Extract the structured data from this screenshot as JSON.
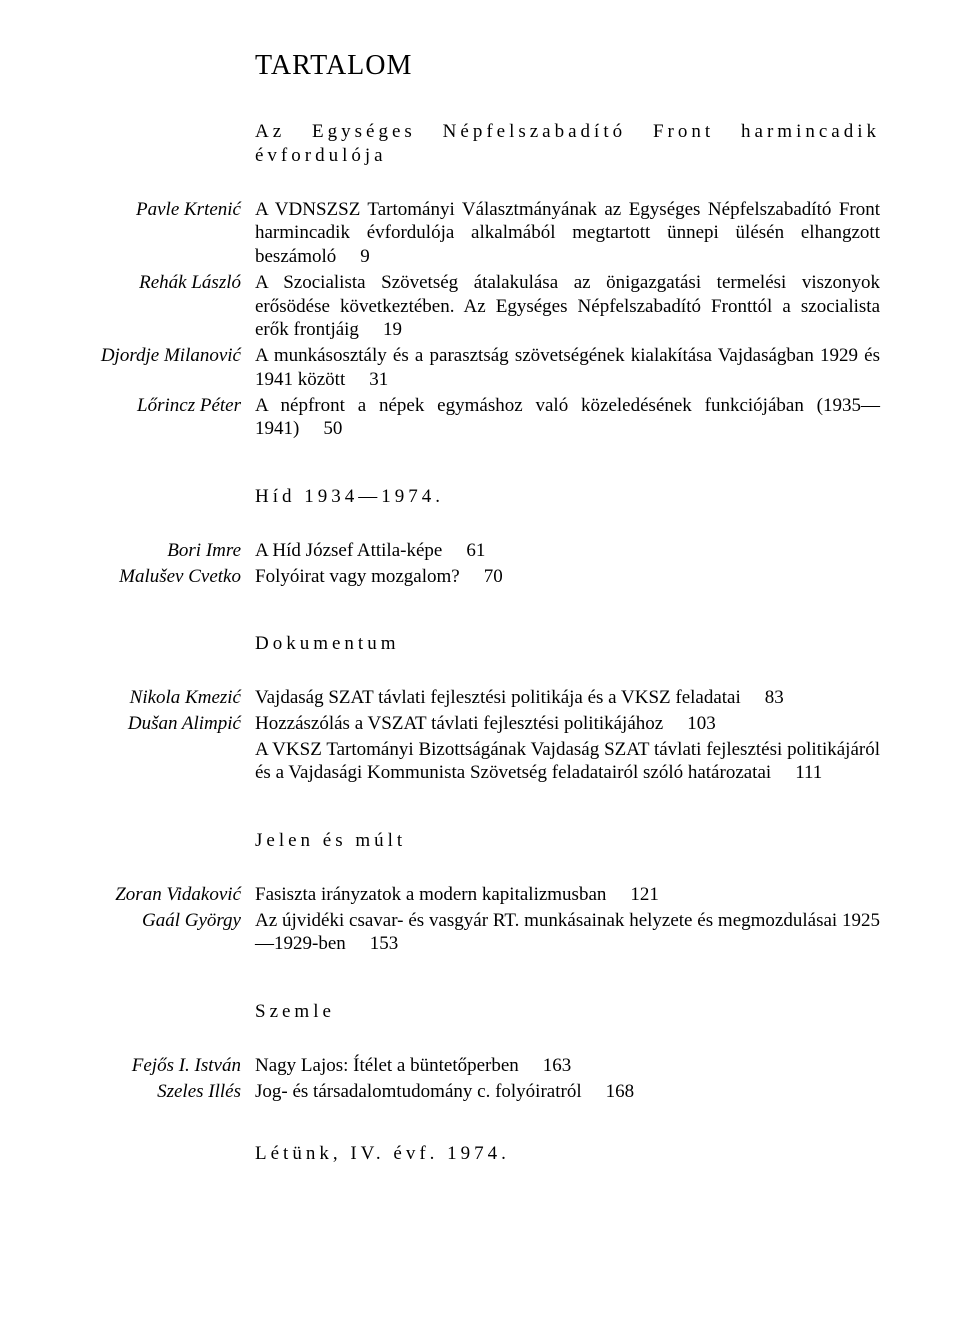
{
  "title": "TARTALOM",
  "sections": [
    {
      "heading": "Az Egységes Népfelszabadító Front harmincadik évfordulója",
      "entries": [
        {
          "author": "Pavle Krtenić",
          "text": "A VDNSZSZ Tartományi Választmányának az Egységes Népfelszabadító Front harmincadik évfordulója alkalmából megtartott ünnepi ülésén elhangzott beszámoló",
          "page": "9"
        },
        {
          "author": "Rehák László",
          "text": "A Szocialista Szövetség átalakulása az önigazgatási termelési viszonyok erősödése következtében. Az Egységes Népfelszabadító Fronttól a szocialista erők frontjáig",
          "page": "19"
        },
        {
          "author": "Djordje Milanović",
          "text": "A munkásosztály és a parasztság szövetségének kialakítása Vajdaságban 1929 és 1941 között",
          "page": "31"
        },
        {
          "author": "Lőrincz Péter",
          "text": "A népfront a népek egymáshoz való közeledésének funkciójában (1935—1941)",
          "page": "50"
        }
      ]
    },
    {
      "heading": "Híd 1934—1974.",
      "entries": [
        {
          "author": "Bori Imre",
          "text": "A Híd József Attila-képe",
          "page": "61"
        },
        {
          "author": "Malušev Cvetko",
          "text": "Folyóirat vagy mozgalom?",
          "page": "70"
        }
      ]
    },
    {
      "heading": "Dokumentum",
      "entries": [
        {
          "author": "Nikola Kmezić",
          "text": "Vajdaság SZAT távlati fejlesztési politikája és a VKSZ feladatai",
          "page": "83"
        },
        {
          "author": "Dušan Alimpić",
          "text": "Hozzászólás a VSZAT távlati fejlesztési politikájához",
          "page": "103"
        },
        {
          "author": "",
          "text": "A VKSZ Tartományi Bizottságának Vajdaság SZAT távlati fejlesztési politikájáról és a Vajdasági Kommunista Szövetség feladatairól szóló határozatai",
          "page": "111"
        }
      ]
    },
    {
      "heading": "Jelen és múlt",
      "entries": [
        {
          "author": "Zoran Vidaković",
          "text": "Fasiszta irányzatok a modern kapitalizmusban",
          "page": "121"
        },
        {
          "author": "Gaál György",
          "text": "Az újvidéki csavar- és vasgyár RT. munkásainak helyzete és megmozdulásai 1925—1929-ben",
          "page": "153"
        }
      ]
    },
    {
      "heading": "Szemle",
      "entries": [
        {
          "author": "Fejős I. István",
          "text": "Nagy Lajos: Ítélet a büntetőperben",
          "page": "163"
        },
        {
          "author": "Szeles Illés",
          "text": "Jog- és társadalomtudomány c. folyóiratról",
          "page": "168"
        }
      ]
    }
  ],
  "footer": "Létünk, IV. évf. 1974."
}
